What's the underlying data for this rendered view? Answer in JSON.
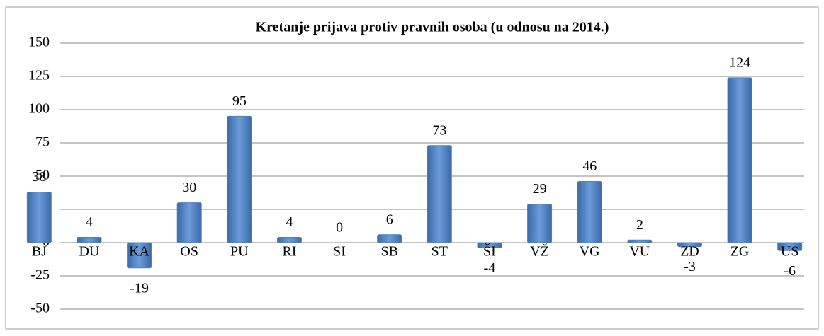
{
  "chart_data": {
    "type": "bar",
    "title": "Kretanje prijava protiv pravnih osoba (u odnosu na 2014.)",
    "categories": [
      "BJ",
      "DU",
      "KA",
      "OS",
      "PU",
      "RI",
      "SI",
      "SB",
      "ST",
      "ŠI",
      "VŽ",
      "VG",
      "VU",
      "ZD",
      "ZG",
      "US"
    ],
    "values": [
      38,
      4,
      -19,
      30,
      95,
      4,
      0,
      6,
      73,
      -4,
      29,
      46,
      2,
      -3,
      124,
      -6
    ],
    "color": "#4f81bd",
    "ylim": [
      -50,
      150
    ],
    "yticks": [
      -50,
      -25,
      0,
      25,
      50,
      75,
      100,
      125,
      150
    ],
    "grid": true
  }
}
